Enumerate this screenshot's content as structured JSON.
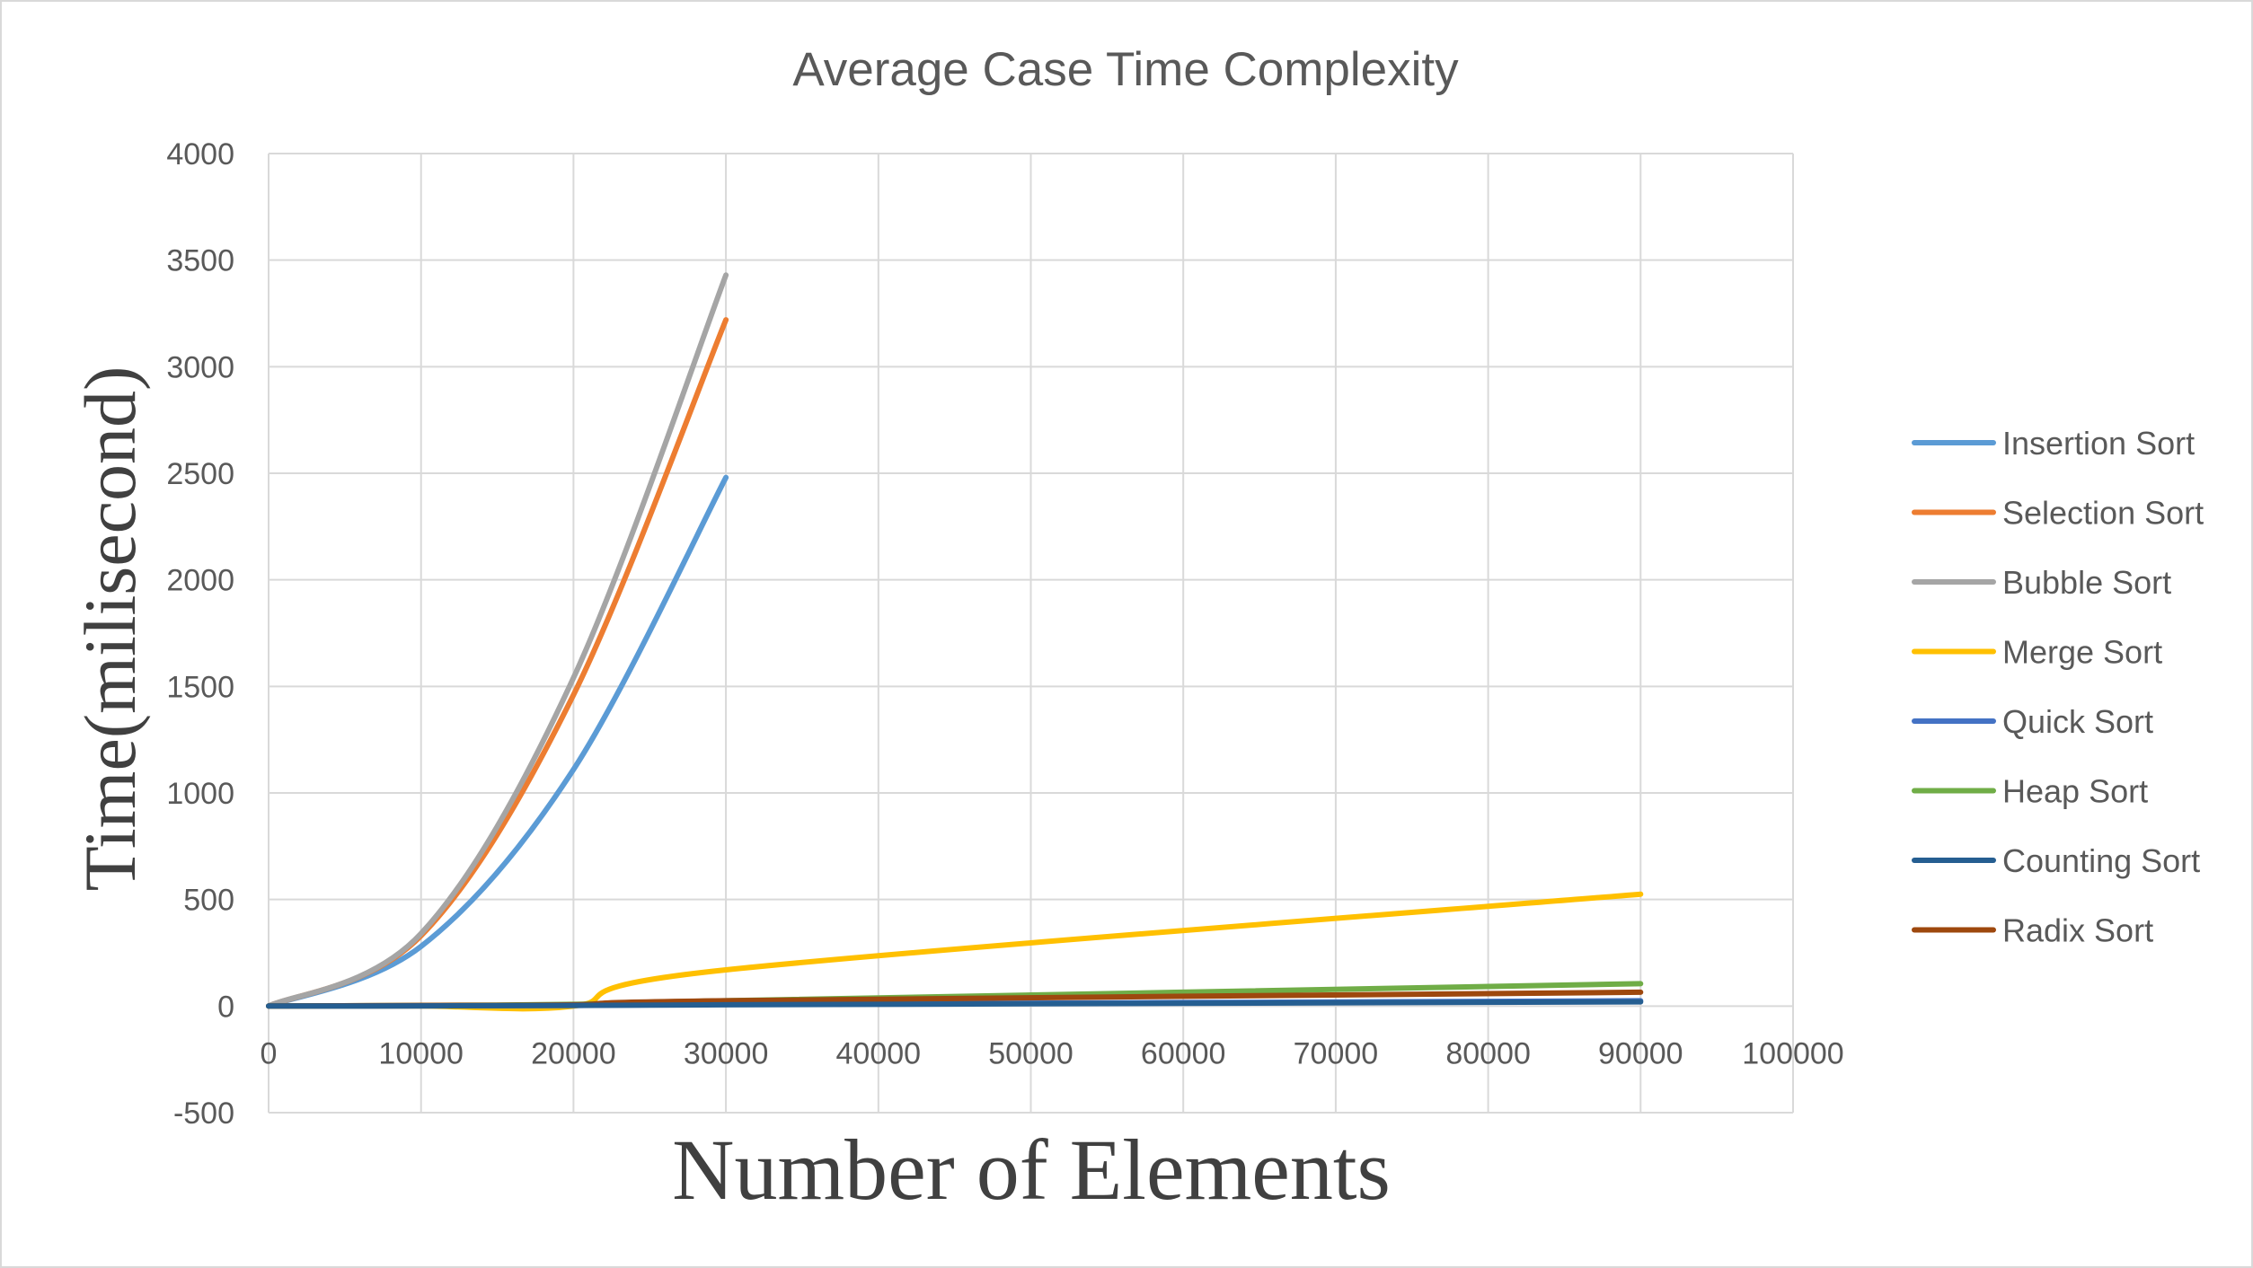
{
  "chart_data": {
    "type": "line",
    "title": "Average Case Time Complexity",
    "xlabel": "Number of Elements",
    "ylabel": "Time(milisecond)",
    "xlim": [
      0,
      100000
    ],
    "ylim": [
      -500,
      4000
    ],
    "x_ticks": [
      0,
      10000,
      20000,
      30000,
      40000,
      50000,
      60000,
      70000,
      80000,
      90000,
      100000
    ],
    "y_ticks": [
      -500,
      0,
      500,
      1000,
      1500,
      2000,
      2500,
      3000,
      3500,
      4000
    ],
    "x_tick_labels": [
      "0",
      "10000",
      "20000",
      "30000",
      "40000",
      "50000",
      "60000",
      "70000",
      "80000",
      "90000",
      "100000"
    ],
    "y_tick_labels": [
      "-500",
      "0",
      "500",
      "1000",
      "1500",
      "2000",
      "2500",
      "3000",
      "3500",
      "4000"
    ],
    "grid": true,
    "legend_position": "right",
    "series": [
      {
        "name": "Insertion Sort",
        "color": "#5b9bd5",
        "x": [
          0,
          10000,
          20000,
          30000
        ],
        "values": [
          0,
          280,
          1110,
          2480
        ]
      },
      {
        "name": "Selection Sort",
        "color": "#ed7d31",
        "x": [
          0,
          10000,
          20000,
          30000
        ],
        "values": [
          0,
          330,
          1460,
          3220
        ]
      },
      {
        "name": "Bubble Sort",
        "color": "#a5a5a5",
        "x": [
          0,
          10000,
          20000,
          30000
        ],
        "values": [
          0,
          340,
          1540,
          3430
        ]
      },
      {
        "name": "Merge Sort",
        "color": "#ffc000",
        "x": [
          0,
          10000,
          20000,
          30000,
          90000
        ],
        "values": [
          0,
          0,
          0,
          170,
          525
        ]
      },
      {
        "name": "Quick Sort",
        "color": "#4472c4",
        "x": [
          0,
          10000,
          20000,
          30000,
          90000
        ],
        "values": [
          0,
          1,
          3,
          8,
          25
        ]
      },
      {
        "name": "Heap Sort",
        "color": "#70ad47",
        "x": [
          0,
          10000,
          20000,
          30000,
          90000
        ],
        "values": [
          0,
          3,
          8,
          25,
          105
        ]
      },
      {
        "name": "Counting Sort",
        "color": "#255e91",
        "x": [
          0,
          10000,
          20000,
          30000,
          90000
        ],
        "values": [
          0,
          1,
          3,
          6,
          20
        ]
      },
      {
        "name": "Radix Sort",
        "color": "#9e480e",
        "x": [
          0,
          10000,
          20000,
          30000,
          90000
        ],
        "values": [
          0,
          3,
          6,
          25,
          65
        ]
      }
    ]
  }
}
